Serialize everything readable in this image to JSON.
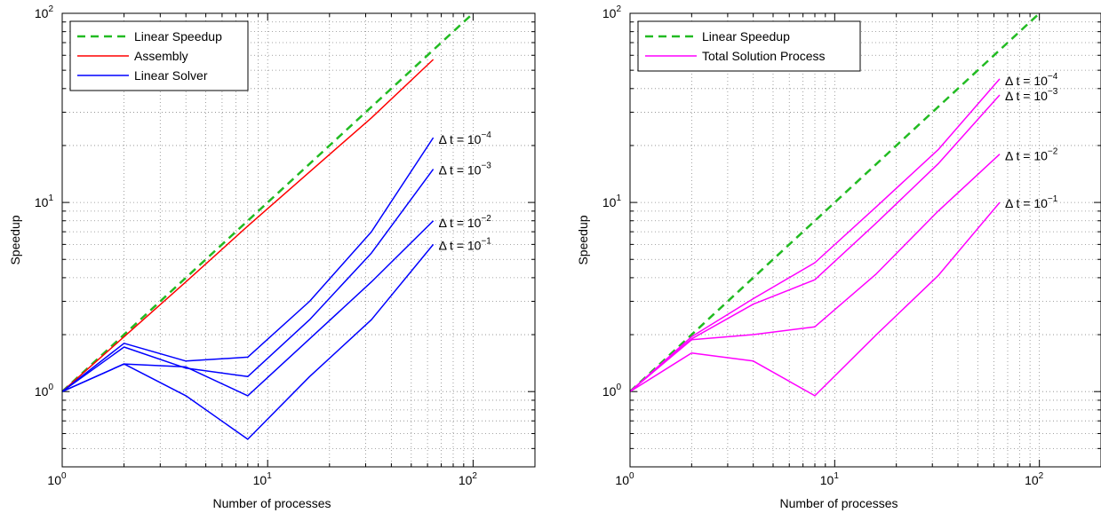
{
  "chart_data": [
    {
      "type": "line",
      "xscale": "log",
      "yscale": "log",
      "xlim": [
        1,
        200
      ],
      "ylim": [
        0.4,
        100
      ],
      "grid": true,
      "legend_position": "top-left",
      "xlabel": "Number of processes",
      "ylabel": "Speedup",
      "x_ticks": [
        {
          "base": "10",
          "exp": "0",
          "value": 1
        },
        {
          "base": "10",
          "exp": "1",
          "value": 10
        },
        {
          "base": "10",
          "exp": "2",
          "value": 100
        }
      ],
      "y_ticks": [
        {
          "base": "10",
          "exp": "0",
          "value": 1
        },
        {
          "base": "10",
          "exp": "1",
          "value": 10
        },
        {
          "base": "10",
          "exp": "2",
          "value": 100
        }
      ],
      "series": [
        {
          "name": "Linear Speedup",
          "color": "#22bb22",
          "dash": true,
          "x": [
            1,
            100
          ],
          "y": [
            1,
            100
          ]
        },
        {
          "name": "Assembly",
          "color": "#ff0000",
          "x": [
            1,
            2,
            4,
            8,
            16,
            32,
            64
          ],
          "y": [
            1,
            1.95,
            3.8,
            7.5,
            14.5,
            28,
            57
          ]
        },
        {
          "name": "Linear Solver",
          "color": "#0000ff",
          "x": [
            1,
            2,
            4,
            8,
            16,
            32,
            64
          ],
          "y": [
            1,
            1.8,
            1.45,
            1.52,
            3.0,
            7.0,
            22
          ]
        },
        {
          "color": "#0000ff",
          "x": [
            1,
            2,
            4,
            8,
            16,
            32,
            64
          ],
          "y": [
            1,
            1.72,
            1.33,
            1.2,
            2.4,
            5.4,
            15
          ]
        },
        {
          "color": "#0000ff",
          "x": [
            1,
            2,
            4,
            8,
            16,
            32,
            64
          ],
          "y": [
            1,
            1.4,
            1.35,
            0.95,
            1.9,
            3.8,
            8
          ]
        },
        {
          "color": "#0000ff",
          "x": [
            1,
            2,
            4,
            8,
            16,
            32,
            64
          ],
          "y": [
            1,
            1.4,
            0.95,
            0.56,
            1.2,
            2.4,
            6
          ]
        }
      ],
      "annotations": [
        {
          "prefix": "Δ t = 10",
          "exp": "−4",
          "x": 64,
          "y": 22
        },
        {
          "prefix": "Δ t = 10",
          "exp": "−3",
          "x": 64,
          "y": 15
        },
        {
          "prefix": "Δ t = 10",
          "exp": "−2",
          "x": 64,
          "y": 8
        },
        {
          "prefix": "Δ t = 10",
          "exp": "−1",
          "x": 64,
          "y": 6
        }
      ]
    },
    {
      "type": "line",
      "xscale": "log",
      "yscale": "log",
      "xlim": [
        1,
        200
      ],
      "ylim": [
        0.4,
        100
      ],
      "grid": true,
      "legend_position": "top-left",
      "xlabel": "Number of processes",
      "ylabel": "Speedup",
      "x_ticks": [
        {
          "base": "10",
          "exp": "0",
          "value": 1
        },
        {
          "base": "10",
          "exp": "1",
          "value": 10
        },
        {
          "base": "10",
          "exp": "2",
          "value": 100
        }
      ],
      "y_ticks": [
        {
          "base": "10",
          "exp": "0",
          "value": 1
        },
        {
          "base": "10",
          "exp": "1",
          "value": 10
        },
        {
          "base": "10",
          "exp": "2",
          "value": 100
        }
      ],
      "series": [
        {
          "name": "Linear Speedup",
          "color": "#22bb22",
          "dash": true,
          "x": [
            1,
            100
          ],
          "y": [
            1,
            100
          ]
        },
        {
          "name": "Total Solution Process",
          "color": "#ff00ff",
          "x": [
            1,
            2,
            4,
            8,
            16,
            32,
            64
          ],
          "y": [
            1,
            1.95,
            3.1,
            4.8,
            9.5,
            19,
            45
          ]
        },
        {
          "color": "#ff00ff",
          "x": [
            1,
            2,
            4,
            8,
            16,
            32,
            64
          ],
          "y": [
            1,
            1.9,
            2.9,
            3.9,
            7.8,
            16,
            37
          ]
        },
        {
          "color": "#ff00ff",
          "x": [
            1,
            2,
            4,
            8,
            16,
            32,
            64
          ],
          "y": [
            1,
            1.88,
            2.0,
            2.2,
            4.2,
            9.0,
            18
          ]
        },
        {
          "color": "#ff00ff",
          "x": [
            1,
            2,
            4,
            8,
            16,
            32,
            64
          ],
          "y": [
            1,
            1.6,
            1.45,
            0.95,
            2.0,
            4.1,
            10
          ]
        }
      ],
      "annotations": [
        {
          "prefix": "Δ t = 10",
          "exp": "−4",
          "x": 64,
          "y": 45
        },
        {
          "prefix": "Δ t = 10",
          "exp": "−3",
          "x": 64,
          "y": 37
        },
        {
          "prefix": "Δ t = 10",
          "exp": "−2",
          "x": 64,
          "y": 18
        },
        {
          "prefix": "Δ t = 10",
          "exp": "−1",
          "x": 64,
          "y": 10
        }
      ]
    }
  ]
}
